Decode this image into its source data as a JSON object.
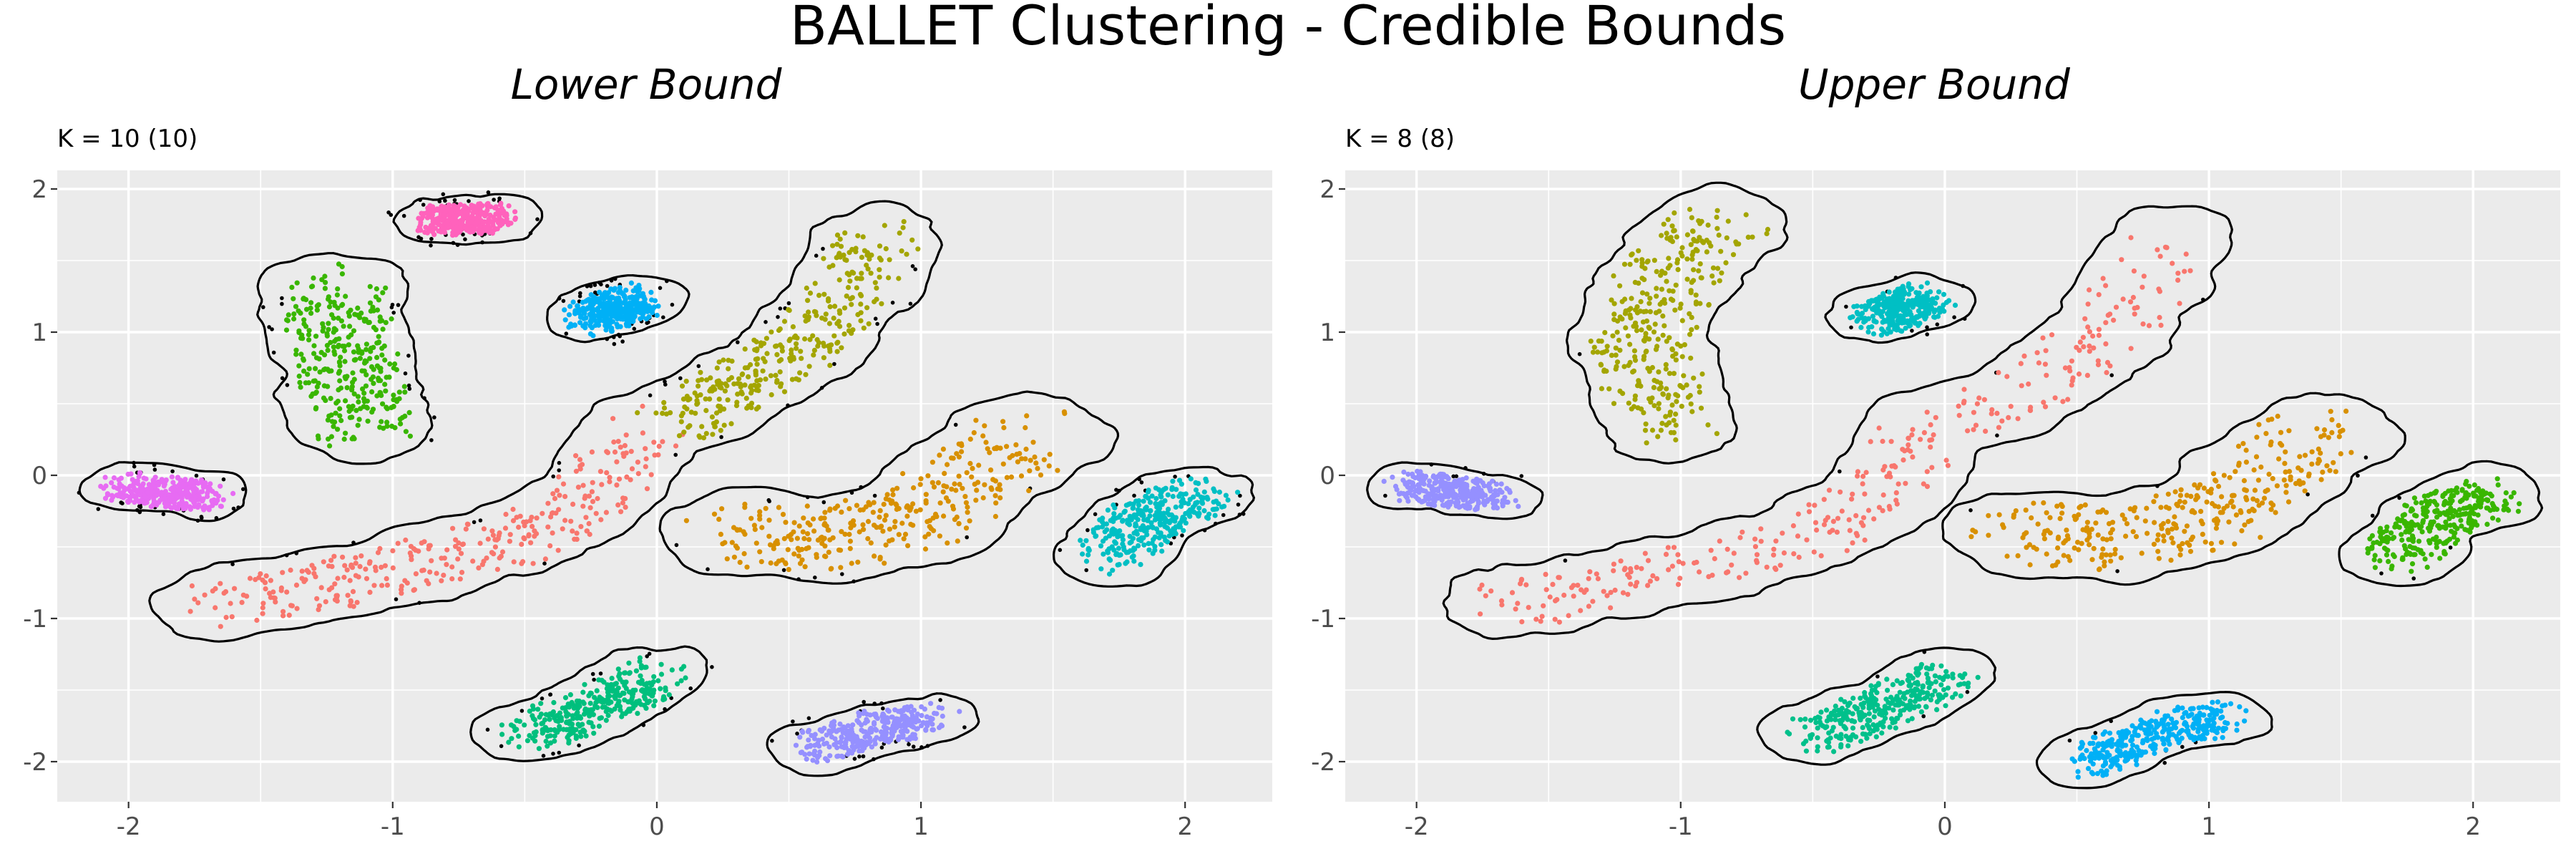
{
  "chart_data": {
    "title": "BALLET Clustering - Credible Bounds",
    "type": "scatter",
    "xlim": [
      -2.27,
      2.33
    ],
    "ylim": [
      -2.28,
      2.13
    ],
    "x_ticks": [
      -2,
      -1,
      0,
      1,
      2
    ],
    "y_ticks": [
      -2,
      -1,
      0,
      1,
      2
    ],
    "x_tick_labels": [
      "-2",
      "-1",
      "0",
      "1",
      "2"
    ],
    "y_tick_labels": [
      "-2",
      "-1",
      "0",
      "1",
      "2"
    ],
    "grid": true,
    "panel_background": "#ebebeb",
    "outline_color": "#000000",
    "uncertain_point_color": "#000000",
    "panels": [
      {
        "title": "Lower Bound",
        "subtitle": "K = 10 (10)",
        "clusters": [
          {
            "color": "#F8766D",
            "shape": [
              [
                -1.65,
                -0.9
              ],
              [
                -1.3,
                -0.78
              ],
              [
                -0.9,
                -0.62
              ],
              [
                -0.55,
                -0.45
              ],
              [
                -0.3,
                -0.22
              ],
              [
                -0.15,
                0.05
              ],
              [
                -0.05,
                0.35
              ]
            ],
            "width": 0.2
          },
          {
            "color": "#A3A500",
            "shape": [
              [
                0.05,
                0.38
              ],
              [
                0.25,
                0.55
              ],
              [
                0.55,
                0.9
              ],
              [
                0.72,
                1.25
              ],
              [
                0.85,
                1.65
              ]
            ],
            "width": 0.19
          },
          {
            "color": "#D89000",
            "shape": [
              [
                0.3,
                -0.4
              ],
              [
                0.65,
                -0.45
              ],
              [
                1.0,
                -0.3
              ],
              [
                1.2,
                0.0
              ],
              [
                1.42,
                0.28
              ]
            ],
            "width": 0.25
          },
          {
            "color": "#39B600",
            "shape": [
              [
                -1.22,
                1.3
              ],
              [
                -1.2,
                0.95
              ],
              [
                -1.15,
                0.6
              ],
              [
                -1.1,
                0.35
              ]
            ],
            "width": 0.22
          },
          {
            "color": "#00BFC4",
            "shape": [
              [
                1.72,
                -0.55
              ],
              [
                1.85,
                -0.3
              ],
              [
                2.05,
                -0.15
              ]
            ],
            "width": 0.17
          },
          {
            "color": "#00B0F6",
            "shape": [
              [
                -0.25,
                1.1
              ],
              [
                -0.08,
                1.22
              ]
            ],
            "width": 0.14
          },
          {
            "color": "#FF62BC",
            "shape": [
              [
                -0.85,
                1.78
              ],
              [
                -0.62,
                1.8
              ]
            ],
            "width": 0.12
          },
          {
            "color": "#00BF7D",
            "shape": [
              [
                -0.48,
                -1.8
              ],
              [
                -0.2,
                -1.6
              ],
              [
                0.0,
                -1.4
              ]
            ],
            "width": 0.16
          },
          {
            "color": "#9590FF",
            "shape": [
              [
                0.6,
                -1.9
              ],
              [
                0.85,
                -1.75
              ],
              [
                1.05,
                -1.7
              ]
            ],
            "width": 0.13
          },
          {
            "color": "#E76BF3",
            "shape": [
              [
                -2.02,
                -0.08
              ],
              [
                -1.7,
                -0.15
              ]
            ],
            "width": 0.12
          }
        ]
      },
      {
        "title": "Upper Bound",
        "subtitle": "K = 8 (8)",
        "clusters": [
          {
            "color": "#F8766D",
            "shape": [
              [
                -1.65,
                -0.9
              ],
              [
                -1.3,
                -0.78
              ],
              [
                -0.9,
                -0.62
              ],
              [
                -0.55,
                -0.45
              ],
              [
                -0.3,
                -0.22
              ],
              [
                -0.15,
                0.05
              ],
              [
                -0.05,
                0.35
              ],
              [
                0.25,
                0.5
              ],
              [
                0.55,
                0.9
              ],
              [
                0.72,
                1.25
              ],
              [
                0.85,
                1.65
              ]
            ],
            "width": 0.2
          },
          {
            "color": "#D89000",
            "shape": [
              [
                0.3,
                -0.4
              ],
              [
                0.65,
                -0.45
              ],
              [
                1.0,
                -0.3
              ],
              [
                1.2,
                0.0
              ],
              [
                1.42,
                0.28
              ]
            ],
            "width": 0.25
          },
          {
            "color": "#A3A500",
            "shape": [
              [
                -0.85,
                1.75
              ],
              [
                -1.05,
                1.4
              ],
              [
                -1.15,
                1.0
              ],
              [
                -1.1,
                0.6
              ],
              [
                -1.05,
                0.35
              ]
            ],
            "width": 0.22
          },
          {
            "color": "#00C08B",
            "shape": [
              [
                -0.48,
                -1.8
              ],
              [
                -0.2,
                -1.6
              ],
              [
                0.0,
                -1.4
              ]
            ],
            "width": 0.16
          },
          {
            "color": "#00BFC4",
            "shape": [
              [
                -0.25,
                1.1
              ],
              [
                -0.08,
                1.22
              ]
            ],
            "width": 0.14
          },
          {
            "color": "#39B600",
            "shape": [
              [
                1.72,
                -0.55
              ],
              [
                1.85,
                -0.3
              ],
              [
                2.05,
                -0.15
              ]
            ],
            "width": 0.17
          },
          {
            "color": "#00B0F6",
            "shape": [
              [
                0.55,
                -2.0
              ],
              [
                0.85,
                -1.75
              ],
              [
                1.05,
                -1.7
              ]
            ],
            "width": 0.14
          },
          {
            "color": "#9590FF",
            "shape": [
              [
                -2.02,
                -0.08
              ],
              [
                -1.7,
                -0.15
              ]
            ],
            "width": 0.12
          }
        ]
      }
    ]
  }
}
